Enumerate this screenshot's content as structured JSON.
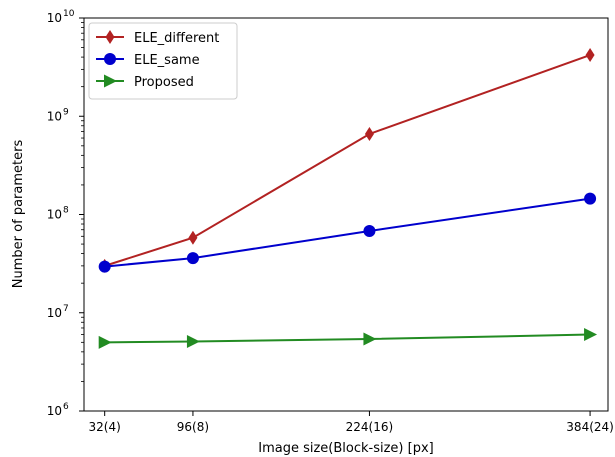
{
  "chart_data": {
    "type": "line",
    "title": "",
    "xlabel": "Image size(Block-size)  [px]",
    "ylabel": "Number of parameters",
    "x": [
      32,
      96,
      224,
      384
    ],
    "xtick_labels": [
      "32(4)",
      "96(8)",
      "224(16)",
      "384(24)"
    ],
    "xlim": [
      17,
      397
    ],
    "yscale": "log",
    "ylim": [
      1000000,
      10000000000
    ],
    "ytick_labels": [
      {
        "value": 1000000,
        "base": "10",
        "exp": "6"
      },
      {
        "value": 10000000,
        "base": "10",
        "exp": "7"
      },
      {
        "value": 100000000,
        "base": "10",
        "exp": "8"
      },
      {
        "value": 1000000000,
        "base": "10",
        "exp": "9"
      },
      {
        "value": 10000000000,
        "base": "10",
        "exp": "10"
      }
    ],
    "grid": false,
    "legend_position": "top-left",
    "series": [
      {
        "name": "ELE_different",
        "color": "#b22222",
        "marker": "diamond",
        "values": [
          30000000,
          58000000,
          660000000,
          4200000000
        ]
      },
      {
        "name": "ELE_same",
        "color": "#0000cd",
        "marker": "circle",
        "values": [
          29500000,
          36000000,
          68000000,
          145000000
        ]
      },
      {
        "name": "Proposed",
        "color": "#228b22",
        "marker": "triangle-right",
        "values": [
          5000000,
          5100000,
          5400000,
          6000000
        ]
      }
    ]
  }
}
